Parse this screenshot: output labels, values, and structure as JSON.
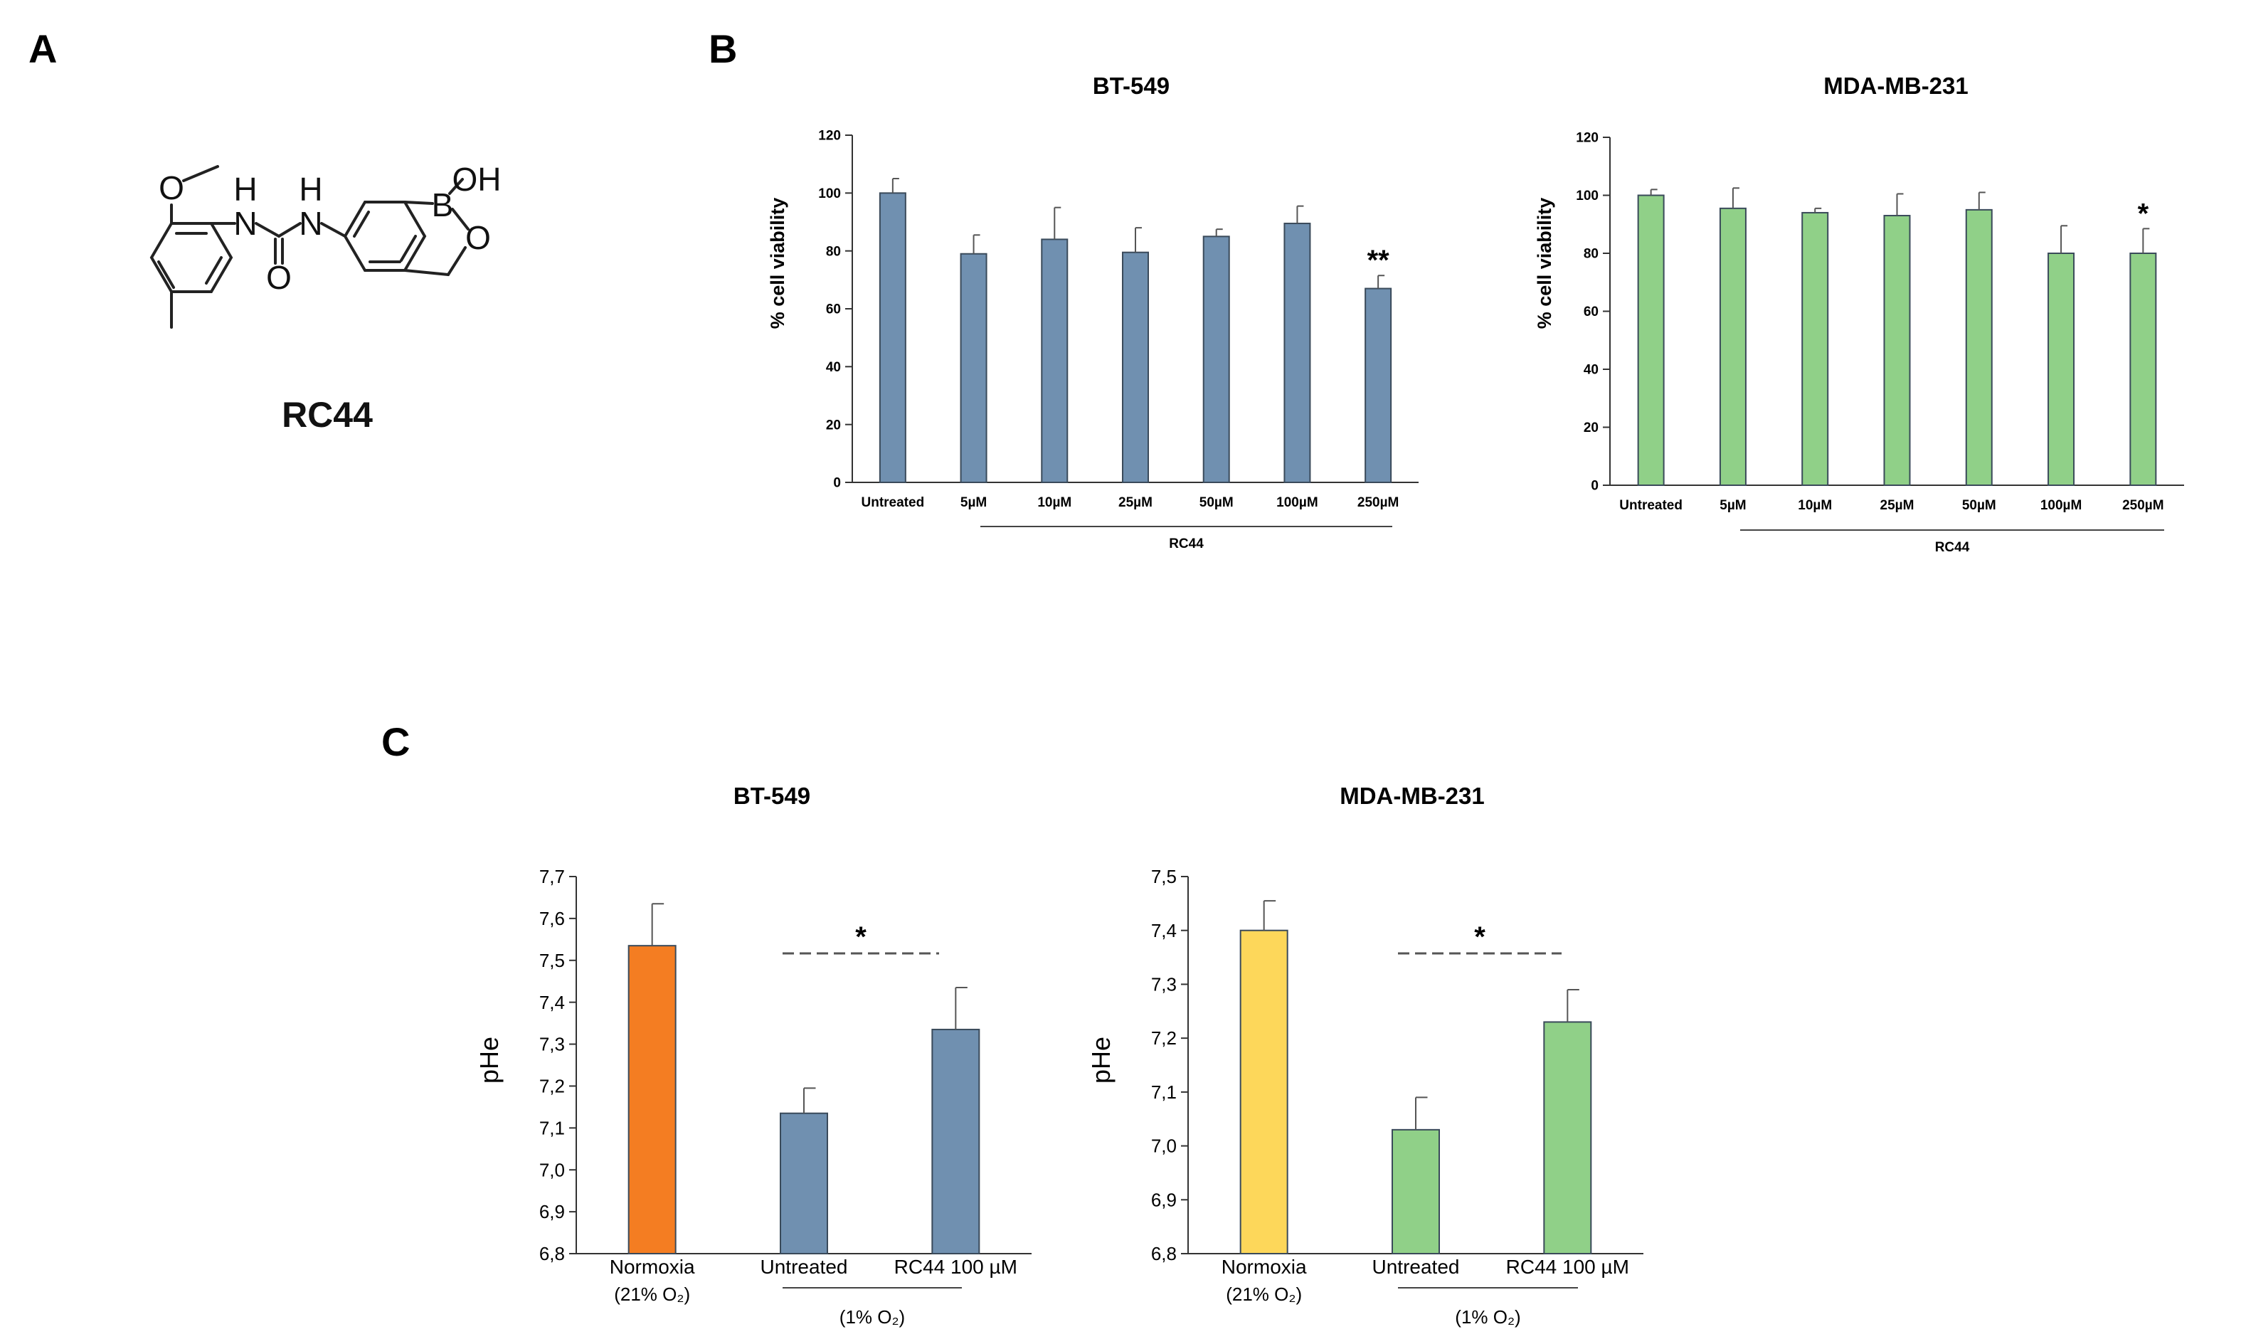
{
  "panels": {
    "a": "A",
    "b": "B",
    "c": "C"
  },
  "molecule": {
    "name": "RC44",
    "atoms": {
      "o_methoxy": "O",
      "nh1_h": "H",
      "nh1_n": "N",
      "nh2_h": "H",
      "nh2_n": "N",
      "o_carbonyl": "O",
      "oh": "OH",
      "b": "B",
      "o_ring": "O"
    }
  },
  "colors": {
    "blue": "#7090b0",
    "green": "#90d088",
    "orange": "#f47d22",
    "yellow": "#fdd75a"
  },
  "chart_data": [
    {
      "id": "b1",
      "type": "bar",
      "title": "BT-549",
      "categories": [
        "Untreated",
        "5µM",
        "10µM",
        "25µM",
        "50µM",
        "100µM",
        "250µM"
      ],
      "values": [
        100,
        79,
        84,
        79.5,
        85,
        89.5,
        67
      ],
      "errors": [
        5,
        6.5,
        11,
        8.5,
        2.5,
        6,
        4.5
      ],
      "annotations": [
        "",
        "",
        "",
        "",
        "",
        "",
        "**"
      ],
      "ylabel": "% cell viability",
      "ylim": [
        0,
        120
      ],
      "yticks": [
        "0",
        "20",
        "40",
        "60",
        "80",
        "100",
        "120"
      ],
      "group_label": "RC44",
      "color": "blue"
    },
    {
      "id": "b2",
      "type": "bar",
      "title": "MDA-MB-231",
      "categories": [
        "Untreated",
        "5µM",
        "10µM",
        "25µM",
        "50µM",
        "100µM",
        "250µM"
      ],
      "values": [
        100,
        95.5,
        94,
        93,
        95,
        80,
        80
      ],
      "errors": [
        2,
        7,
        1.5,
        7.5,
        6,
        9.5,
        8.5
      ],
      "annotations": [
        "",
        "",
        "",
        "",
        "",
        "",
        "*"
      ],
      "ylabel": "% cell viability",
      "ylim": [
        0,
        120
      ],
      "yticks": [
        "0",
        "20",
        "40",
        "60",
        "80",
        "100",
        "120"
      ],
      "group_label": "RC44",
      "color": "green"
    },
    {
      "id": "c1",
      "type": "bar",
      "title": "BT-549",
      "categories": [
        "Normoxia",
        "Untreated",
        "RC44 100 µM"
      ],
      "sublabels": [
        "(21% O₂)",
        "",
        ""
      ],
      "values": [
        7.535,
        7.135,
        7.335
      ],
      "errors": [
        0.1,
        0.06,
        0.1
      ],
      "colors": [
        "orange",
        "blue",
        "blue"
      ],
      "ylabel": "pHe",
      "ylim": [
        6.8,
        7.7
      ],
      "yticks": [
        "6,8",
        "6,9",
        "7,0",
        "7,1",
        "7,2",
        "7,3",
        "7,4",
        "7,5",
        "7,6",
        "7,7"
      ],
      "group_label": "(1% O₂)",
      "significance": "*"
    },
    {
      "id": "c2",
      "type": "bar",
      "title": "MDA-MB-231",
      "categories": [
        "Normoxia",
        "Untreated",
        "RC44 100 µM"
      ],
      "sublabels": [
        "(21% O₂)",
        "",
        ""
      ],
      "values": [
        7.4,
        7.03,
        7.23
      ],
      "errors": [
        0.055,
        0.06,
        0.06
      ],
      "colors": [
        "yellow",
        "green",
        "green"
      ],
      "ylabel": "pHe",
      "ylim": [
        6.8,
        7.5
      ],
      "yticks": [
        "6,8",
        "6,9",
        "7,0",
        "7,1",
        "7,2",
        "7,3",
        "7,4",
        "7,5"
      ],
      "group_label": "(1% O₂)",
      "significance": "*"
    }
  ]
}
